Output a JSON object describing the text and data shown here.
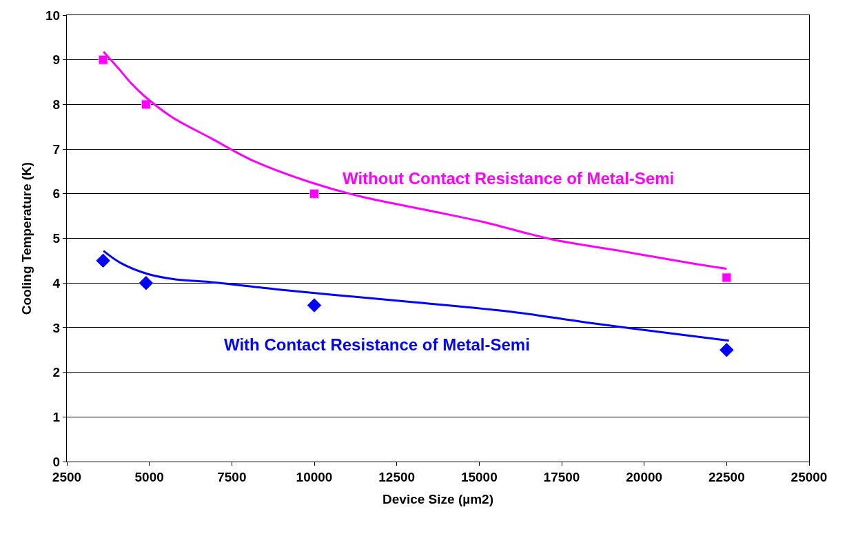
{
  "chart_data": {
    "type": "scatter",
    "xlabel": "Device Size (µm2)",
    "ylabel": "Cooling Temperature (K)",
    "xlim": [
      2500,
      25000
    ],
    "xticks": [
      2500,
      5000,
      7500,
      10000,
      12500,
      15000,
      17500,
      20000,
      22500,
      25000
    ],
    "ylim": [
      0,
      10
    ],
    "yticks": [
      0,
      1,
      2,
      3,
      4,
      5,
      6,
      7,
      8,
      9,
      10
    ],
    "grid": "y",
    "series": [
      {
        "marker": "square",
        "color": "#ff00ff",
        "x": [
          3600,
          4900,
          10000,
          22500
        ],
        "values": [
          9,
          8,
          6,
          4.12
        ]
      },
      {
        "marker": "diamond",
        "color": "#0000ff",
        "x": [
          3600,
          4900,
          10000,
          22500
        ],
        "values": [
          4.5,
          4.0,
          3.5,
          2.5
        ]
      },
      {
        "type": "line",
        "name": "Without Contact Resistance of Metal-Semi",
        "color": "#ff00ff",
        "x": [
          3610,
          4130,
          4440,
          4860,
          5700,
          6850,
          8200,
          9870,
          11340,
          13430,
          15100,
          17190,
          19270,
          21360,
          22500
        ],
        "values": [
          9.18,
          8.75,
          8.48,
          8.18,
          7.71,
          7.25,
          6.72,
          6.26,
          5.95,
          5.63,
          5.37,
          4.98,
          4.72,
          4.45,
          4.32
        ]
      },
      {
        "type": "line",
        "name": "With Contact Resistance of Metal-Semi",
        "color": "#0000ff",
        "x": [
          3610,
          4130,
          4960,
          5800,
          6740,
          8830,
          10500,
          13010,
          16140,
          18230,
          21360,
          22570
        ],
        "values": [
          4.72,
          4.45,
          4.2,
          4.08,
          4.03,
          3.86,
          3.74,
          3.57,
          3.34,
          3.12,
          2.82,
          2.71
        ]
      }
    ]
  }
}
